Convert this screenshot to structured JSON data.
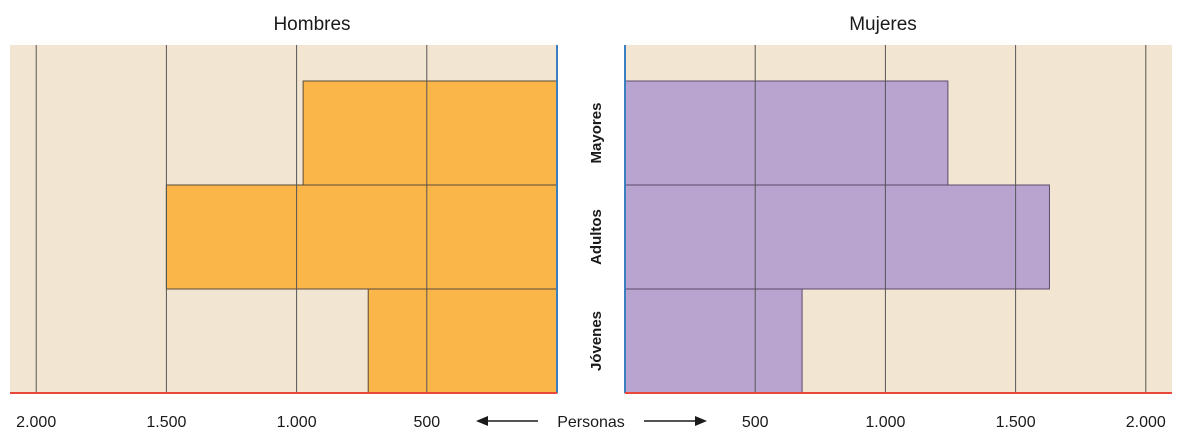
{
  "chart_data": {
    "type": "bar",
    "subtype": "population-pyramid",
    "categories": [
      "Jóvenes",
      "Adultos",
      "Mayores"
    ],
    "series": [
      {
        "name": "Hombres",
        "values": [
          725,
          1500,
          975
        ]
      },
      {
        "name": "Mujeres",
        "values": [
          680,
          1630,
          1240
        ]
      }
    ],
    "xlabel": "Personas",
    "xlim": [
      0,
      2100
    ],
    "xticks": [
      {
        "value": 500,
        "label": "500"
      },
      {
        "value": 1000,
        "label": "1.000"
      },
      {
        "value": 1500,
        "label": "1.500"
      },
      {
        "value": 2000,
        "label": "2.000"
      }
    ],
    "grid": true,
    "colors": {
      "hombres": "#fbb64a",
      "mujeres": "#b9a3cf",
      "background": "#f2e6d2",
      "grid": "#555555",
      "axis": "#e8473a",
      "center_axis": "#3a7fc0"
    }
  }
}
